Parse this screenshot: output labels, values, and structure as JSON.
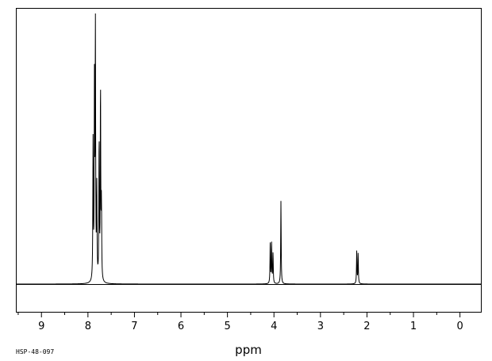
{
  "chart_data": {
    "type": "line",
    "title": "",
    "xlabel": "ppm",
    "ylabel": "",
    "x_reversed": true,
    "xlim": [
      9.55,
      -0.45
    ],
    "ylim": [
      0,
      100
    ],
    "grid": false,
    "x_ticks": [
      9,
      8,
      7,
      6,
      5,
      4,
      3,
      2,
      1,
      0
    ],
    "x_tick_labels": [
      "9",
      "8",
      "7",
      "6",
      "5",
      "4",
      "3",
      "2",
      "1",
      "0"
    ],
    "peaks": [
      {
        "ppm": 7.89,
        "intensity": 55
      },
      {
        "ppm": 7.86,
        "intensity": 77
      },
      {
        "ppm": 7.84,
        "intensity": 100
      },
      {
        "ppm": 7.81,
        "intensity": 36
      },
      {
        "ppm": 7.76,
        "intensity": 56
      },
      {
        "ppm": 7.73,
        "intensity": 77
      },
      {
        "ppm": 7.71,
        "intensity": 30
      },
      {
        "ppm": 4.08,
        "intensity": 16
      },
      {
        "ppm": 4.05,
        "intensity": 16
      },
      {
        "ppm": 4.02,
        "intensity": 12
      },
      {
        "ppm": 3.85,
        "intensity": 33
      },
      {
        "ppm": 2.22,
        "intensity": 13
      },
      {
        "ppm": 2.19,
        "intensity": 12
      }
    ]
  },
  "annotation": "HSP-48-097"
}
